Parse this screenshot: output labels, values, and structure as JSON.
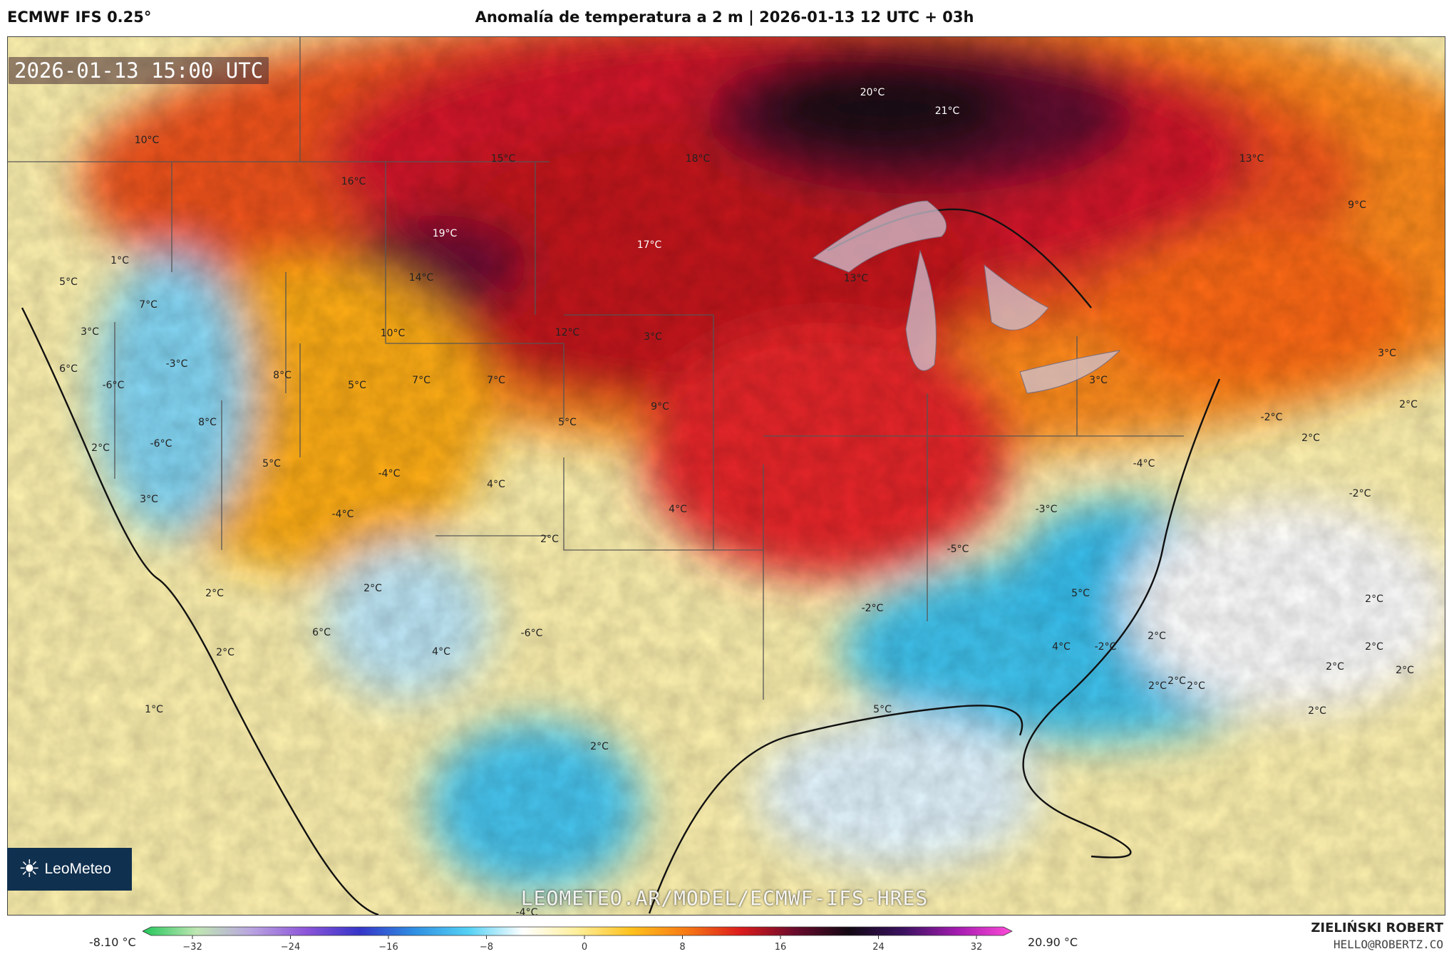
{
  "header": {
    "model": "ECMWF IFS 0.25°",
    "title": "Anomalía de temperatura a 2 m | 2026-01-13 12 UTC + 03h"
  },
  "map": {
    "timestamp": "2026-01-13 15:00 UTC",
    "watermark": "LEOMETEO.AR/MODEL/ECMWF-IFS-HRES",
    "logo_text": "LeoMeteo",
    "labels": [
      "10°C",
      "15°C",
      "18°C",
      "20°C",
      "21°C",
      "13°C",
      "9°C",
      "16°C",
      "19°C",
      "17°C",
      "14°C",
      "13°C",
      "1°C",
      "5°C",
      "7°C",
      "3°C",
      "6°C",
      "-3°C",
      "-6°C",
      "8°C",
      "5°C",
      "7°C",
      "7°C",
      "10°C",
      "12°C",
      "9°C",
      "5°C",
      "8°C",
      "-6°C",
      "2°C",
      "5°C",
      "3°C",
      "-4°C",
      "4°C",
      "4°C",
      "-4°C",
      "2°C",
      "3°C",
      "3°C",
      "2°C",
      "-2°C",
      "2°C",
      "-4°C",
      "-3°C",
      "-5°C",
      "-2°C",
      "2°C",
      "-2°C",
      "5°C",
      "2°C",
      "2°C",
      "6°C",
      "2°C",
      "-6°C",
      "4°C",
      "-2°C",
      "3°C",
      "4°C",
      "2°C",
      "2°C",
      "2°C",
      "2°C",
      "2°C",
      "2°C",
      "2°C",
      "2°C",
      "1°C",
      "5°C",
      "-4°C",
      "2°C"
    ],
    "colors": {
      "cold": "#3fc4ef",
      "neutral": "#ffffff",
      "warm": "#ffd23a",
      "hot": "#f0521e",
      "extreme": "#2b0a2c"
    }
  },
  "legend": {
    "min_label": "-8.10 °C",
    "max_label": "20.90 °C",
    "ticks": [
      "−32",
      "−24",
      "−16",
      "−8",
      "0",
      "8",
      "16",
      "24",
      "32"
    ],
    "stops": [
      "#22c65a",
      "#bfe6b3",
      "#b9a4e0",
      "#8d55d9",
      "#3535c8",
      "#2f8fe2",
      "#54d1f5",
      "#ffffff",
      "#ffef9a",
      "#ffc11c",
      "#f77a14",
      "#dc1c1c",
      "#6a0a2c",
      "#120814",
      "#3a1160",
      "#a41bb0",
      "#ff4bd8"
    ]
  },
  "credit": {
    "name": "ZIELIŃSKI ROBERT",
    "email": "HELLO@ROBERTZ.CO"
  }
}
